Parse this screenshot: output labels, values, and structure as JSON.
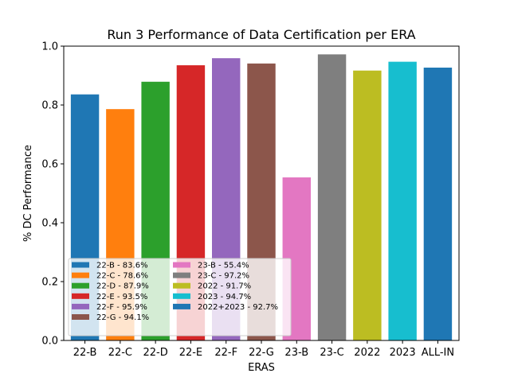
{
  "chart_data": {
    "type": "bar",
    "title": "Run 3 Performance of Data Certification per ERA",
    "xlabel": "ERAS",
    "ylabel": "% DC Performance",
    "ylim": [
      0,
      1.0
    ],
    "yticks": [
      "0.0",
      "0.2",
      "0.4",
      "0.6",
      "0.8",
      "1.0"
    ],
    "categories": [
      "22-B",
      "22-C",
      "22-D",
      "22-E",
      "22-F",
      "22-G",
      "23-B",
      "23-C",
      "2022",
      "2023",
      "ALL-IN"
    ],
    "values": [
      0.836,
      0.786,
      0.879,
      0.935,
      0.959,
      0.941,
      0.554,
      0.972,
      0.917,
      0.947,
      0.927
    ],
    "colors": [
      "#1f77b4",
      "#ff7f0e",
      "#2ca02c",
      "#d62728",
      "#9467bd",
      "#8c564b",
      "#e377c2",
      "#7f7f7f",
      "#bcbd22",
      "#17becf",
      "#1f77b4"
    ],
    "legend": {
      "placement": "lower-left",
      "entries": [
        "22-B - 83.6%",
        "22-C - 78.6%",
        "22-D - 87.9%",
        "22-E - 93.5%",
        "22-F - 95.9%",
        "22-G - 94.1%",
        "23-B - 55.4%",
        "23-C - 97.2%",
        "2022 - 91.7%",
        "2023 - 94.7%",
        "2022+2023 - 92.7%"
      ]
    },
    "grid": false
  }
}
